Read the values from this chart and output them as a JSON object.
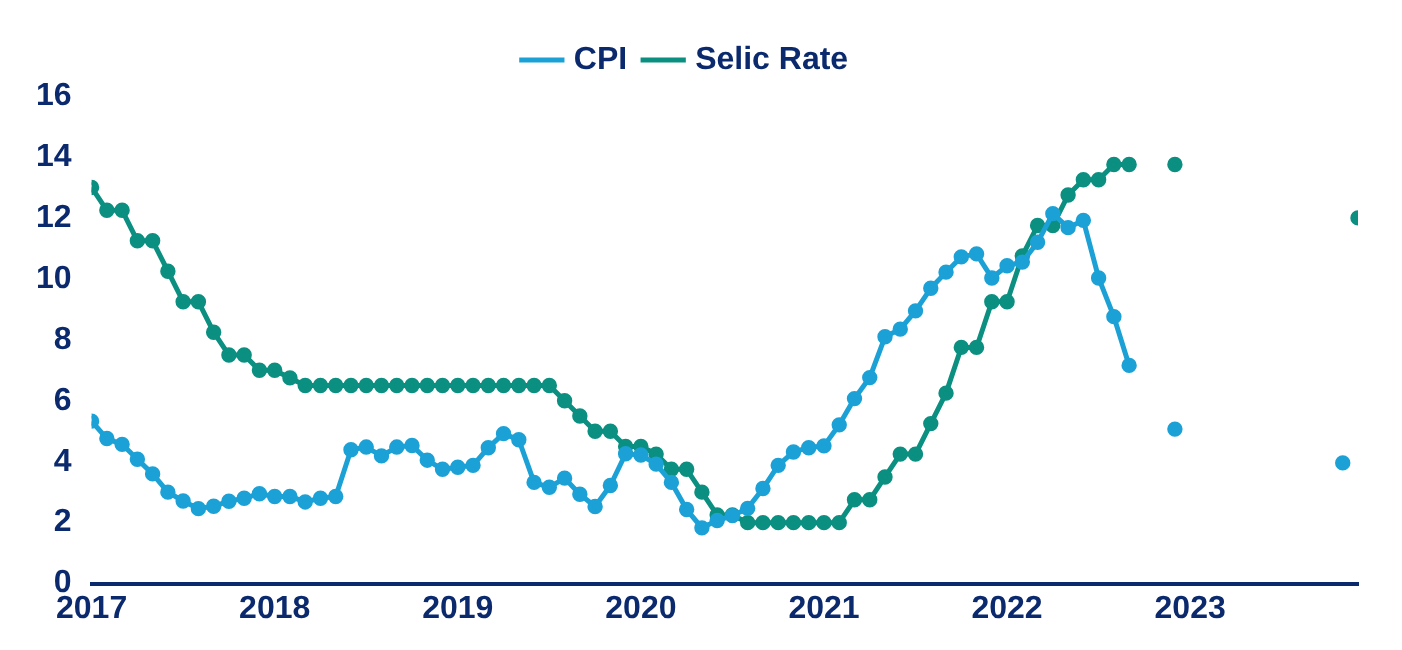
{
  "chart_data": {
    "type": "line",
    "legend": "top",
    "marker": "circle",
    "grid": false,
    "xlim": [
      "2017-01",
      "2023-12"
    ],
    "xticks": [
      "2017",
      "2018",
      "2019",
      "2020",
      "2021",
      "2022",
      "2023"
    ],
    "ylim": [
      0,
      16
    ],
    "yticks": [
      0,
      2,
      4,
      6,
      8,
      10,
      12,
      14,
      16
    ],
    "x": [
      "2017-01",
      "2017-02",
      "2017-03",
      "2017-04",
      "2017-05",
      "2017-06",
      "2017-07",
      "2017-08",
      "2017-09",
      "2017-10",
      "2017-11",
      "2017-12",
      "2018-01",
      "2018-02",
      "2018-03",
      "2018-04",
      "2018-05",
      "2018-06",
      "2018-07",
      "2018-08",
      "2018-09",
      "2018-10",
      "2018-11",
      "2018-12",
      "2019-01",
      "2019-02",
      "2019-03",
      "2019-04",
      "2019-05",
      "2019-06",
      "2019-07",
      "2019-08",
      "2019-09",
      "2019-10",
      "2019-11",
      "2019-12",
      "2020-01",
      "2020-02",
      "2020-03",
      "2020-04",
      "2020-05",
      "2020-06",
      "2020-07",
      "2020-08",
      "2020-09",
      "2020-10",
      "2020-11",
      "2020-12",
      "2021-01",
      "2021-02",
      "2021-03",
      "2021-04",
      "2021-05",
      "2021-06",
      "2021-07",
      "2021-08",
      "2021-09",
      "2021-10",
      "2021-11",
      "2021-12",
      "2022-01",
      "2022-02",
      "2022-03",
      "2022-04",
      "2022-05",
      "2022-06",
      "2022-07",
      "2022-08",
      "2022-09",
      "2022-10",
      "2022-12",
      "2023-01",
      "2023-11",
      "2023-12"
    ],
    "series": [
      {
        "name": "CPI",
        "color": "#1ba1d6",
        "values": [
          5.33,
          4.76,
          4.57,
          4.08,
          3.6,
          3.0,
          2.71,
          2.46,
          2.54,
          2.7,
          2.8,
          2.95,
          2.86,
          2.86,
          2.68,
          2.8,
          2.86,
          4.39,
          4.48,
          4.19,
          4.48,
          4.53,
          4.05,
          3.75,
          3.82,
          3.88,
          4.46,
          4.92,
          4.72,
          3.32,
          3.16,
          3.46,
          2.93,
          2.53,
          3.22,
          4.26,
          4.22,
          3.92,
          3.32,
          2.43,
          1.83,
          2.07,
          2.23,
          2.47,
          3.12,
          3.88,
          4.32,
          4.46,
          4.52,
          5.21,
          6.07,
          6.76,
          8.1,
          8.35,
          8.95,
          9.69,
          10.22,
          10.72,
          10.82,
          10.03,
          10.43,
          10.55,
          11.2,
          12.14,
          11.68,
          11.92,
          10.03,
          8.76,
          7.16,
          null,
          5.07,
          null,
          3.96,
          null
        ]
      },
      {
        "name": "Selic Rate",
        "color": "#0a8f80",
        "values": [
          13,
          12.25,
          12.25,
          11.25,
          11.25,
          10.25,
          9.25,
          9.25,
          8.25,
          7.5,
          7.5,
          7.0,
          7.0,
          6.75,
          6.5,
          6.5,
          6.5,
          6.5,
          6.5,
          6.5,
          6.5,
          6.5,
          6.5,
          6.5,
          6.5,
          6.5,
          6.5,
          6.5,
          6.5,
          6.5,
          6.5,
          6.0,
          5.5,
          5.0,
          5.0,
          4.5,
          4.5,
          4.25,
          3.75,
          3.75,
          3.0,
          2.25,
          2.25,
          2,
          2,
          2,
          2,
          2,
          2,
          2,
          2.75,
          2.75,
          3.5,
          4.25,
          4.25,
          5.25,
          6.25,
          7.75,
          7.75,
          9.25,
          9.25,
          10.75,
          11.75,
          11.75,
          12.75,
          13.25,
          13.25,
          13.75,
          13.75,
          null,
          13.75,
          null,
          null,
          12
        ]
      }
    ]
  }
}
